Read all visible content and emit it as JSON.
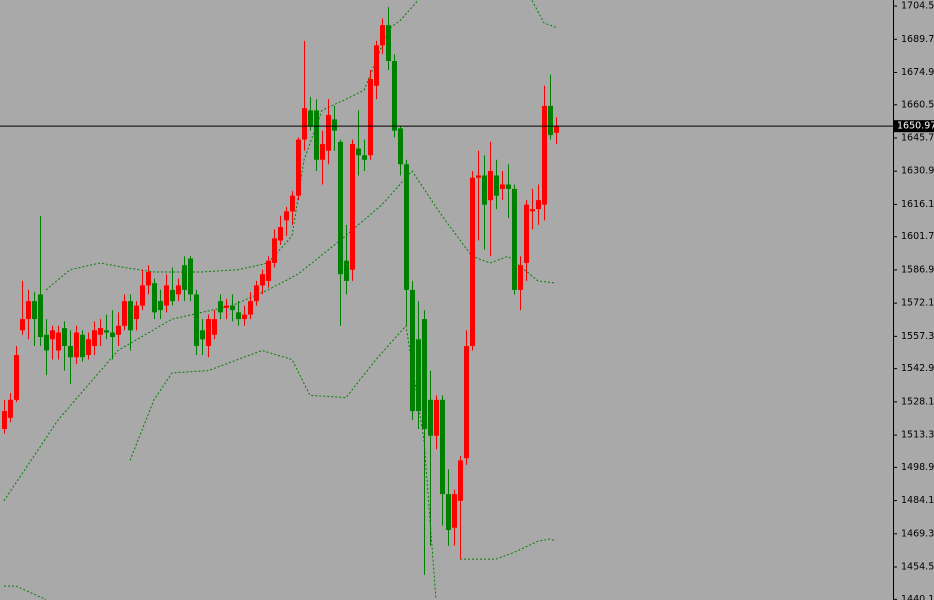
{
  "chart_data": {
    "type": "candlestick",
    "up_color": "#ff0000",
    "down_color": "#008000",
    "open": [
      1516,
      1521,
      1529,
      1560,
      1565,
      1573,
      1576,
      1558,
      1556,
      1551,
      1561,
      1553,
      1548,
      1558,
      1549,
      1553,
      1558,
      1560,
      1559,
      1558,
      1562,
      1573,
      1565,
      1571,
      1580,
      1581,
      1573,
      1571,
      1578,
      1576,
      1589,
      1592,
      1576,
      1560,
      1553,
      1558,
      1573,
      1570,
      1571,
      1568,
      1565,
      1567,
      1573,
      1580,
      1582,
      1590,
      1600,
      1609,
      1613,
      1620,
      1645,
      1658,
      1658,
      1636,
      1640,
      1654,
      1644,
      1591,
      1587,
      1641,
      1638,
      1638,
      1669,
      1687,
      1696,
      1680,
      1650,
      1634,
      1578,
      1556,
      1565,
      1529,
      1513,
      1529,
      1487,
      1472,
      1484,
      1503,
      1553,
      1628,
      1629,
      1618,
      1629,
      1623,
      1625,
      1623,
      1578,
      1590,
      1613,
      1614,
      1616,
      1660,
      1648
    ],
    "high": [
      1529,
      1532,
      1553,
      1582,
      1578,
      1577,
      1611,
      1565,
      1562,
      1562,
      1564,
      1560,
      1562,
      1560,
      1559,
      1564,
      1565,
      1567,
      1569,
      1568,
      1576,
      1576,
      1573,
      1587,
      1589,
      1583,
      1578,
      1585,
      1588,
      1583,
      1593,
      1593,
      1578,
      1565,
      1567,
      1569,
      1576,
      1574,
      1576,
      1573,
      1571,
      1577,
      1582,
      1587,
      1593,
      1605,
      1611,
      1615,
      1622,
      1646,
      1689,
      1664,
      1663,
      1649,
      1663,
      1660,
      1645,
      1607,
      1645,
      1658,
      1645,
      1676,
      1689,
      1699,
      1704,
      1683,
      1651,
      1636,
      1582,
      1573,
      1569,
      1542,
      1531,
      1531,
      1498,
      1489,
      1504,
      1560,
      1631,
      1640,
      1638,
      1644,
      1636,
      1631,
      1634,
      1625,
      1593,
      1618,
      1623,
      1625,
      1669,
      1674,
      1655
    ],
    "low": [
      1514,
      1519,
      1528,
      1558,
      1556,
      1553,
      1553,
      1540,
      1547,
      1547,
      1542,
      1536,
      1545,
      1546,
      1547,
      1549,
      1553,
      1556,
      1547,
      1553,
      1560,
      1551,
      1560,
      1569,
      1576,
      1565,
      1565,
      1568,
      1571,
      1573,
      1573,
      1573,
      1549,
      1549,
      1548,
      1556,
      1565,
      1565,
      1564,
      1562,
      1562,
      1565,
      1571,
      1576,
      1579,
      1588,
      1598,
      1602,
      1607,
      1618,
      1640,
      1649,
      1631,
      1625,
      1634,
      1640,
      1562,
      1576,
      1582,
      1629,
      1631,
      1636,
      1663,
      1683,
      1676,
      1646,
      1629,
      1562,
      1520,
      1516,
      1451,
      1464,
      1507,
      1473,
      1464,
      1464,
      1458,
      1500,
      1551,
      1600,
      1596,
      1593,
      1614,
      1618,
      1610,
      1576,
      1569,
      1582,
      1605,
      1607,
      1609,
      1645,
      1643
    ],
    "close": [
      1524,
      1529,
      1549,
      1565,
      1573,
      1565,
      1557,
      1551,
      1560,
      1559,
      1553,
      1548,
      1559,
      1548,
      1556,
      1560,
      1561,
      1559,
      1557,
      1562,
      1573,
      1560,
      1571,
      1580,
      1586,
      1568,
      1569,
      1580,
      1573,
      1580,
      1578,
      1576,
      1553,
      1556,
      1565,
      1565,
      1568,
      1571,
      1569,
      1565,
      1567,
      1573,
      1580,
      1585,
      1591,
      1601,
      1606,
      1613,
      1620,
      1645,
      1659,
      1651,
      1636,
      1643,
      1656,
      1649,
      1585,
      1582,
      1643,
      1638,
      1636,
      1672,
      1687,
      1696,
      1680,
      1649,
      1634,
      1578,
      1524,
      1524,
      1516,
      1513,
      1529,
      1487,
      1471,
      1487,
      1502,
      1553,
      1628,
      1629,
      1616,
      1631,
      1620,
      1625,
      1623,
      1578,
      1589,
      1616,
      1614,
      1618,
      1660,
      1647,
      1651
    ],
    "bands": [
      {
        "color": "#008000",
        "x": [
          7,
          11,
          16,
          20,
          25,
          33,
          39,
          44,
          48,
          50,
          53,
          57,
          60,
          62,
          64,
          66,
          68,
          69,
          null,
          88,
          90,
          92
        ],
        "values": [
          1578,
          1587,
          1590,
          1588,
          1586,
          1586,
          1587,
          1590,
          1602,
          1636,
          1658,
          1663,
          1667,
          1680,
          1694,
          1698,
          1704,
          1707,
          null,
          1707,
          1697,
          1695
        ]
      },
      {
        "color": "#008000",
        "x": [
          0,
          9,
          19,
          28,
          38,
          44,
          49,
          56,
          63,
          68,
          73,
          78,
          81,
          84,
          89,
          92
        ],
        "values": [
          1484,
          1520,
          1551,
          1565,
          1571,
          1578,
          1585,
          1600,
          1616,
          1631,
          1611,
          1593,
          1590,
          1593,
          1582,
          1581
        ]
      },
      {
        "color": "#008000",
        "x": [
          0,
          2,
          7,
          null,
          21,
          25,
          28,
          34,
          43,
          48,
          51,
          57,
          62,
          67,
          70,
          72,
          null,
          76,
          82,
          85,
          89,
          91,
          92
        ],
        "values": [
          1446,
          1446,
          1440,
          null,
          1502,
          1529,
          1541,
          1542,
          1551,
          1547,
          1531,
          1530,
          1547,
          1562,
          1511,
          1440,
          null,
          1458,
          1458,
          1461,
          1466,
          1467,
          1466
        ]
      }
    ],
    "last_price": 1650.97,
    "ylim": [
      1439.8,
      1707.2
    ],
    "yticks": [
      {
        "value": 1704.5,
        "label": "1704.50"
      },
      {
        "value": 1689.7,
        "label": "1689.70"
      },
      {
        "value": 1674.9,
        "label": "1674.90"
      },
      {
        "value": 1660.5,
        "label": "1660.50"
      },
      {
        "value": 1645.7,
        "label": "1645.70"
      },
      {
        "value": 1630.9,
        "label": "1630.90"
      },
      {
        "value": 1616.1,
        "label": "1616.10"
      },
      {
        "value": 1601.7,
        "label": "1601.70"
      },
      {
        "value": 1586.9,
        "label": "1586.90"
      },
      {
        "value": 1572.1,
        "label": "1572.10"
      },
      {
        "value": 1557.3,
        "label": "1557.30"
      },
      {
        "value": 1542.9,
        "label": "1542.90"
      },
      {
        "value": 1528.1,
        "label": "1528.10"
      },
      {
        "value": 1513.3,
        "label": "1513.30"
      },
      {
        "value": 1498.9,
        "label": "1498.90"
      },
      {
        "value": 1484.1,
        "label": "1484.10"
      },
      {
        "value": 1469.3,
        "label": "1469.30"
      },
      {
        "value": 1454.5,
        "label": "1454.50"
      },
      {
        "value": 1440.1,
        "label": "1440.10"
      }
    ]
  }
}
